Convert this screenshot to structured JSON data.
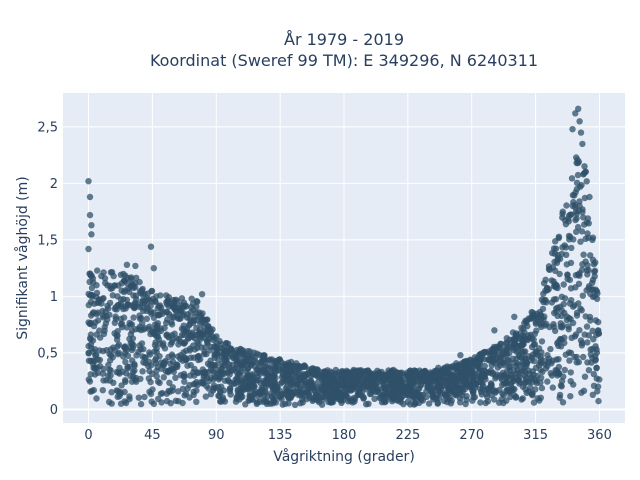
{
  "chart_data": {
    "type": "scatter",
    "title": "År 1979 - 2019",
    "subtitle": "Koordinat (Sweref 99 TM): E 349296, N 6240311",
    "xlabel": "Vågriktning (grader)",
    "ylabel": "Signifikant våghöjd (m)",
    "xlim": [
      -18,
      378
    ],
    "ylim": [
      -0.12,
      2.8
    ],
    "x_ticks": [
      0,
      45,
      90,
      135,
      180,
      225,
      270,
      315,
      360
    ],
    "x_tick_labels": [
      "0",
      "45",
      "90",
      "135",
      "180",
      "225",
      "270",
      "315",
      "360"
    ],
    "y_ticks": [
      0,
      0.5,
      1,
      1.5,
      2,
      2.5
    ],
    "y_tick_labels": [
      "0",
      "0,5",
      "1",
      "1,5",
      "2",
      "2,5"
    ],
    "grid": true,
    "background_color": "#e5ecf6",
    "marker_color": "#2f5068",
    "envelope": {
      "direction": [
        0,
        10,
        20,
        30,
        45,
        60,
        75,
        90,
        105,
        120,
        135,
        150,
        165,
        180,
        195,
        210,
        225,
        240,
        255,
        270,
        285,
        300,
        315,
        325,
        335,
        345,
        350,
        355,
        360
      ],
      "upper_height": [
        1.2,
        1.25,
        1.2,
        1.2,
        1.05,
        1.0,
        1.0,
        0.65,
        0.55,
        0.5,
        0.45,
        0.4,
        0.35,
        0.35,
        0.35,
        0.35,
        0.35,
        0.35,
        0.4,
        0.45,
        0.55,
        0.7,
        0.9,
        1.3,
        1.8,
        2.3,
        2.2,
        1.6,
        0.8
      ]
    },
    "outliers": [
      {
        "x": 0,
        "y": 2.02
      },
      {
        "x": 1,
        "y": 1.88
      },
      {
        "x": 1,
        "y": 1.72
      },
      {
        "x": 2,
        "y": 1.63
      },
      {
        "x": 2,
        "y": 1.55
      },
      {
        "x": 0,
        "y": 1.42
      },
      {
        "x": 44,
        "y": 1.44
      },
      {
        "x": 46,
        "y": 1.25
      },
      {
        "x": 27,
        "y": 1.28
      },
      {
        "x": 33,
        "y": 1.27
      },
      {
        "x": 80,
        "y": 1.02
      },
      {
        "x": 286,
        "y": 0.7
      },
      {
        "x": 289,
        "y": 0.55
      },
      {
        "x": 279,
        "y": 0.5
      },
      {
        "x": 262,
        "y": 0.48
      },
      {
        "x": 300,
        "y": 0.82
      },
      {
        "x": 345,
        "y": 2.66
      },
      {
        "x": 343,
        "y": 2.62
      },
      {
        "x": 346,
        "y": 2.55
      },
      {
        "x": 347,
        "y": 2.45
      },
      {
        "x": 341,
        "y": 2.48
      },
      {
        "x": 348,
        "y": 2.35
      },
      {
        "x": 350,
        "y": 2.1
      },
      {
        "x": 353,
        "y": 1.88
      },
      {
        "x": 355,
        "y": 1.5
      },
      {
        "x": 357,
        "y": 1.3
      }
    ]
  }
}
